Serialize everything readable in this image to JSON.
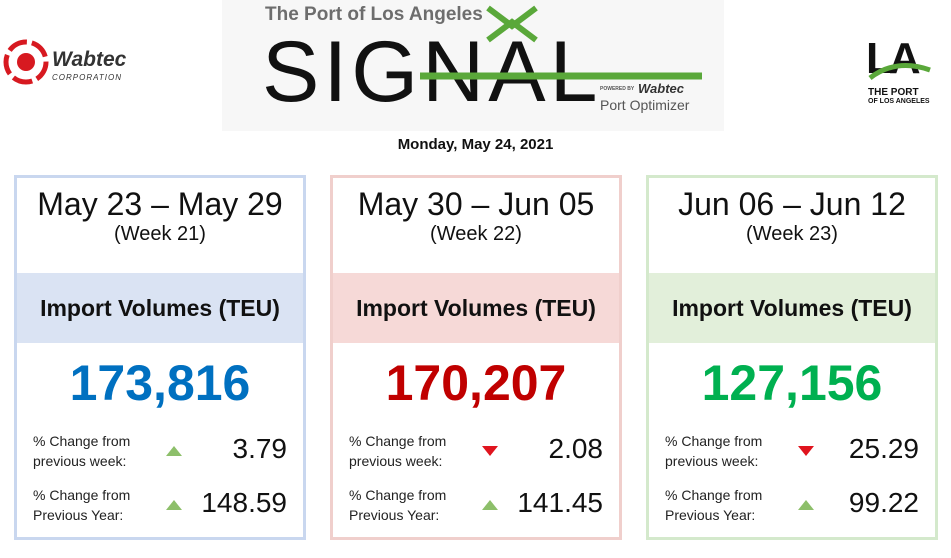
{
  "header": {
    "left_logo": {
      "name": "Wabtec",
      "sub": "CORPORATION"
    },
    "title_top": "The Port of Los Angeles",
    "title": "SIGNAL",
    "powered_by": "POWERED BY",
    "brand": "Wabtec",
    "product": "Port Optimizer",
    "right_logo": {
      "mark": "LA",
      "line1": "THE PORT",
      "line2": "OF LOS ANGELES"
    },
    "date": "Monday, May 24, 2021"
  },
  "cards": [
    {
      "range": "May 23 – May 29",
      "week": "(Week 21)",
      "metric": "Import Volumes (TEU)",
      "value": "173,816",
      "color": "#0070c0",
      "tint": "#dae3f3",
      "border": "#c9d7ef",
      "changes": [
        {
          "label_1": "% Change from",
          "label_2": "previous week:",
          "direction": "up",
          "value": "3.79"
        },
        {
          "label_1": "% Change from",
          "label_2": "Previous Year:",
          "direction": "up",
          "value": "148.59"
        }
      ]
    },
    {
      "range": "May 30 – Jun 05",
      "week": "(Week 22)",
      "metric": "Import Volumes (TEU)",
      "value": "170,207",
      "color": "#c00000",
      "tint": "#f6d9d7",
      "border": "#f0cfcc",
      "changes": [
        {
          "label_1": "% Change from",
          "label_2": "previous week:",
          "direction": "down",
          "value": "2.08"
        },
        {
          "label_1": "% Change from",
          "label_2": "Previous Year:",
          "direction": "up",
          "value": "141.45"
        }
      ]
    },
    {
      "range": "Jun 06 – Jun 12",
      "week": "(Week 23)",
      "metric": "Import Volumes (TEU)",
      "value": "127,156",
      "color": "#00b050",
      "tint": "#e2efda",
      "border": "#d4e9cc",
      "changes": [
        {
          "label_1": "% Change from",
          "label_2": "previous week:",
          "direction": "down",
          "value": "25.29"
        },
        {
          "label_1": "% Change from",
          "label_2": "Previous Year:",
          "direction": "up",
          "value": "99.22"
        }
      ]
    }
  ]
}
